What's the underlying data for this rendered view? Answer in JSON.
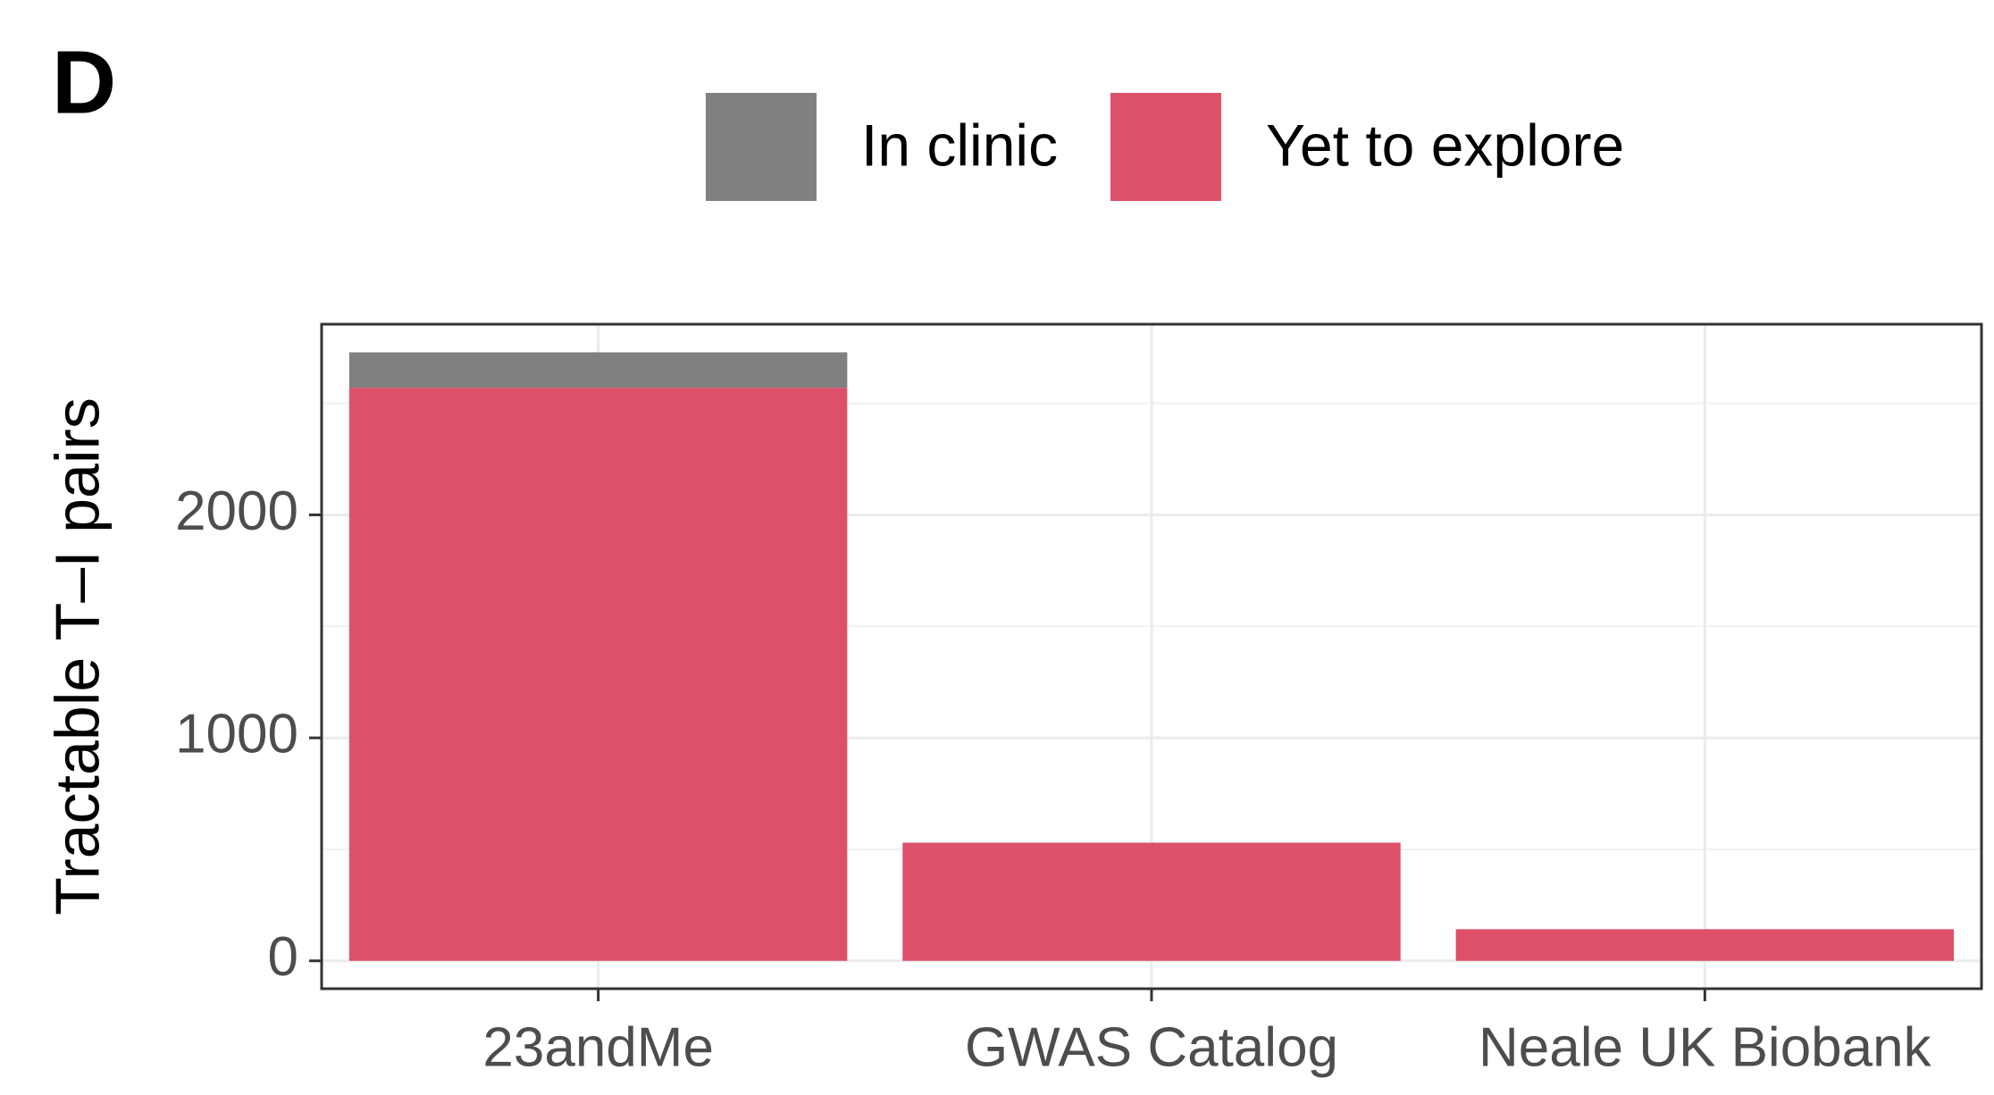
{
  "panel_label": "D",
  "chart_data": {
    "type": "stacked_bar",
    "y_axis_label": "Tractable T–I pairs",
    "categories": [
      "23andMe",
      "GWAS Catalog",
      "Neale UK Biobank"
    ],
    "series": [
      {
        "name": "Yet to explore",
        "color": "#dc5169",
        "values": [
          2570,
          530,
          142
        ]
      },
      {
        "name": "In clinic",
        "color": "#808080",
        "values": [
          159,
          0,
          0
        ]
      }
    ],
    "ylim": [
      -125,
      2855
    ],
    "yticks": [
      0,
      1000,
      2000
    ],
    "minor_yticks": [
      500,
      1500,
      2500
    ],
    "grid": true,
    "legend_position": "top"
  }
}
